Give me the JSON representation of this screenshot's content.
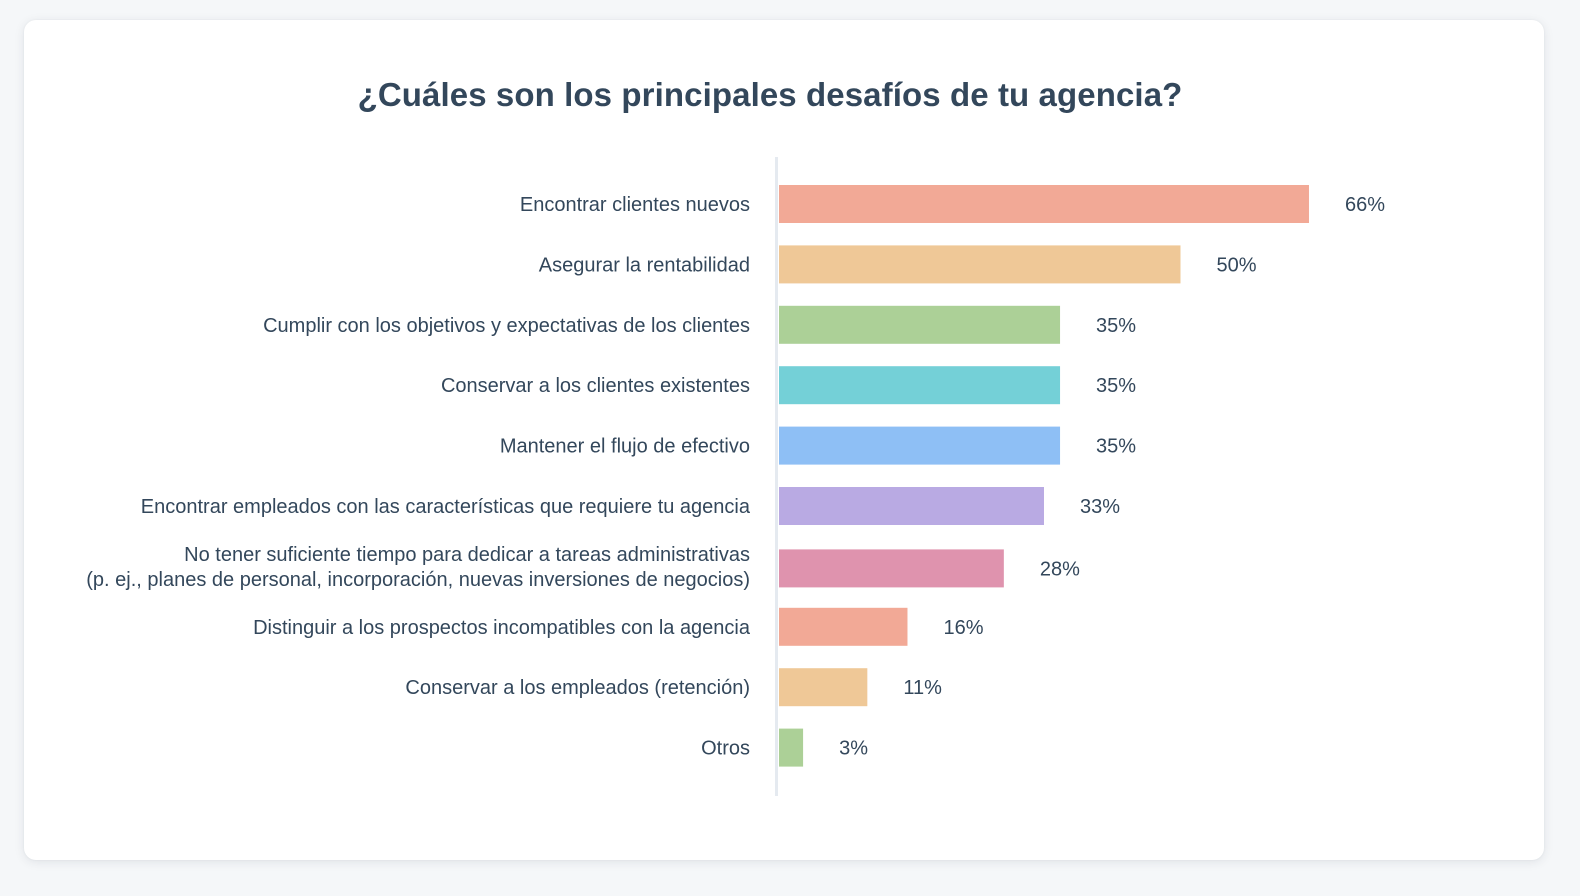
{
  "chart_data": {
    "type": "bar",
    "orientation": "horizontal",
    "title": "¿Cuáles son los principales desafíos de tu agencia?",
    "xlabel": "",
    "ylabel": "",
    "grid": false,
    "legend": "none",
    "xlim": [
      0,
      100
    ],
    "value_suffix": "%",
    "categories": [
      [
        "Encontrar clientes nuevos"
      ],
      [
        "Asegurar la rentabilidad"
      ],
      [
        "Cumplir con los objetivos y expectativas de los clientes"
      ],
      [
        "Conservar a los clientes existentes"
      ],
      [
        "Mantener el flujo de efectivo"
      ],
      [
        "Encontrar empleados con las características que requiere tu agencia"
      ],
      [
        "No tener suficiente tiempo para dedicar a tareas administrativas",
        "(p. ej., planes de personal, incorporación, nuevas inversiones de negocios)"
      ],
      [
        "Distinguir a los prospectos incompatibles con la agencia"
      ],
      [
        "Conservar a los empleados (retención)"
      ],
      [
        "Otros"
      ]
    ],
    "values": [
      66,
      50,
      35,
      35,
      35,
      33,
      28,
      16,
      11,
      3
    ],
    "value_labels": [
      "66%",
      "50%",
      "35%",
      "35%",
      "35%",
      "33%",
      "28%",
      "16%",
      "11%",
      "3%"
    ],
    "colors": [
      "#f2a996",
      "#efc897",
      "#acd097",
      "#74d0d7",
      "#8ebff5",
      "#b9aae3",
      "#df93ae",
      "#f2a996",
      "#efc897",
      "#acd097"
    ]
  },
  "style": {
    "text_color": "#33475b",
    "axis_color": "#e5eaf0",
    "card_bg": "#ffffff",
    "page_bg": "#f5f7f9"
  }
}
